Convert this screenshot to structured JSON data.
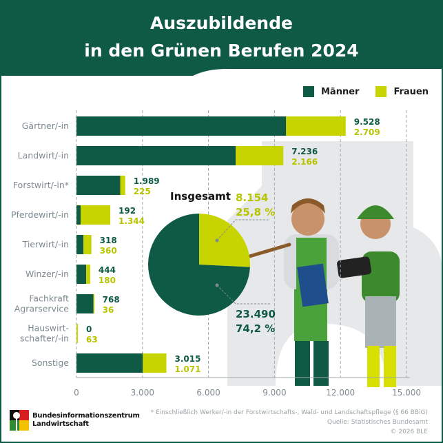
{
  "title_lines": [
    "Auszubildende",
    "in den Grünen Berufen 2024"
  ],
  "colors": {
    "maenner": "#0f5a45",
    "frauen": "#c8d400",
    "header": "#0f5a45"
  },
  "legend": {
    "maenner": "Männer",
    "frauen": "Frauen"
  },
  "chart_data": [
    {
      "type": "bar",
      "orientation": "horizontal",
      "stacked": true,
      "categories": [
        "Gärtner/-in",
        "Landwirt/-in",
        "Forstwirt/-in*",
        "Pferdewirt/-in",
        "Tierwirt/-in",
        "Winzer/-in",
        "Fachkraft Agrarservice",
        "Hauswirt-schafter/-in",
        "Sonstige"
      ],
      "category_lines": [
        [
          "Gärtner/-in"
        ],
        [
          "Landwirt/-in"
        ],
        [
          "Forstwirt/-in*"
        ],
        [
          "Pferdewirt/-in"
        ],
        [
          "Tierwirt/-in"
        ],
        [
          "Winzer/-in"
        ],
        [
          "Fachkraft",
          "Agrarservice"
        ],
        [
          "Hauswirt-",
          "schafter/-in"
        ],
        [
          "Sonstige"
        ]
      ],
      "series": [
        {
          "name": "Männer",
          "values": [
            9528,
            7236,
            1989,
            192,
            318,
            444,
            768,
            0,
            3015
          ],
          "labels": [
            "9.528",
            "7.236",
            "1.989",
            "192",
            "318",
            "444",
            "768",
            "0",
            "3.015"
          ]
        },
        {
          "name": "Frauen",
          "values": [
            2709,
            2166,
            225,
            1344,
            360,
            180,
            36,
            63,
            1071
          ],
          "labels": [
            "2.709",
            "2.166",
            "225",
            "1.344",
            "360",
            "180",
            "36",
            "63",
            "1.071"
          ]
        }
      ],
      "xlim": [
        0,
        15000
      ],
      "xticks": [
        0,
        3000,
        6000,
        9000,
        12000,
        15000
      ],
      "xtick_labels": [
        "0",
        "3.000",
        "6.000",
        "9.000",
        "12.000",
        "15.000"
      ],
      "grid": "vertical dashed",
      "legend": "top-right"
    },
    {
      "type": "pie",
      "title": "Insgesamt",
      "slices": [
        {
          "name": "Frauen",
          "value": 8154,
          "value_label": "8.154",
          "percent_label": "25,8 %"
        },
        {
          "name": "Männer",
          "value": 23490,
          "value_label": "23.490",
          "percent_label": "74,2 %"
        }
      ]
    }
  ],
  "footer": {
    "logo_lines": [
      "Bundesinformationszentrum",
      "Landwirtschaft"
    ],
    "footnote": "* Einschließlich Werker/-in der Forstwirtschafts-, Wald- und Landschaftspflege (§ 66 BBiG)",
    "source": "Quelle: Statistisches Bundesamt",
    "copyright": "© 2026 BLE"
  }
}
